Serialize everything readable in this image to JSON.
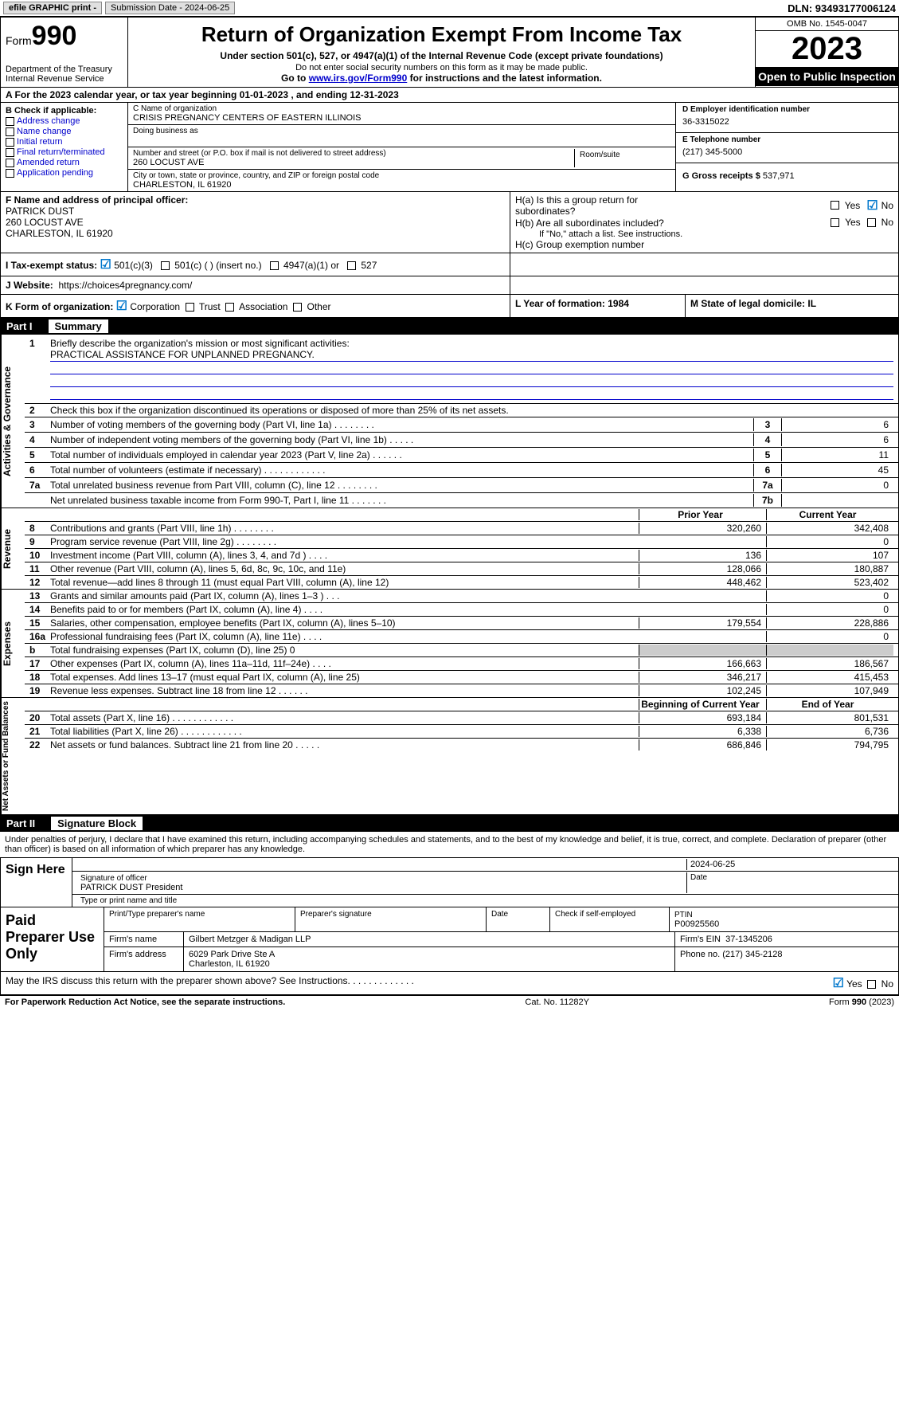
{
  "topbar": {
    "efile": "efile GRAPHIC print -",
    "submission": "Submission Date - 2024-06-25",
    "dln": "DLN: 93493177006124"
  },
  "header": {
    "form_prefix": "Form",
    "form_no": "990",
    "dept1": "Department of the Treasury",
    "dept2": "Internal Revenue Service",
    "title": "Return of Organization Exempt From Income Tax",
    "sub1": "Under section 501(c), 527, or 4947(a)(1) of the Internal Revenue Code (except private foundations)",
    "sub2": "Do not enter social security numbers on this form as it may be made public.",
    "sub3_pre": "Go to ",
    "sub3_link": "www.irs.gov/Form990",
    "sub3_post": " for instructions and the latest information.",
    "omb": "OMB No. 1545-0047",
    "year": "2023",
    "open": "Open to Public Inspection"
  },
  "row_a": "A For the 2023 calendar year, or tax year beginning 01-01-2023    , and ending 12-31-2023",
  "box_b": {
    "hdr": "B Check if applicable:",
    "items": [
      "Address change",
      "Name change",
      "Initial return",
      "Final return/terminated",
      "Amended return",
      "Application pending"
    ]
  },
  "box_c": {
    "name_lbl": "C Name of organization",
    "name": "CRISIS PREGNANCY CENTERS OF EASTERN ILLINOIS",
    "dba_lbl": "Doing business as",
    "dba": "",
    "addr_lbl": "Number and street (or P.O. box if mail is not delivered to street address)",
    "addr": "260 LOCUST AVE",
    "room_lbl": "Room/suite",
    "city_lbl": "City or town, state or province, country, and ZIP or foreign postal code",
    "city": "CHARLESTON, IL  61920"
  },
  "box_d": {
    "ein_lbl": "D Employer identification number",
    "ein": "36-3315022",
    "tel_lbl": "E Telephone number",
    "tel": "(217) 345-5000",
    "gross_lbl": "G Gross receipts $ ",
    "gross": "537,971"
  },
  "box_f": {
    "lbl": "F  Name and address of principal officer:",
    "name": "PATRICK DUST",
    "addr1": "260 LOCUST AVE",
    "addr2": "CHARLESTON, IL  61920"
  },
  "box_h": {
    "ha": "H(a)  Is this a group return for subordinates?",
    "hb": "H(b)  Are all subordinates included?",
    "hb_note": "If \"No,\" attach a list. See instructions.",
    "hc": "H(c)  Group exemption number",
    "yes": "Yes",
    "no": "No"
  },
  "row_i": {
    "lbl": "I    Tax-exempt status:",
    "opts": [
      "501(c)(3)",
      "501(c) (   ) (insert no.)",
      "4947(a)(1) or",
      "527"
    ]
  },
  "row_j": {
    "lbl": "J    Website:",
    "val": "https://choices4pregnancy.com/"
  },
  "row_k": {
    "lbl": "K Form of organization:",
    "opts": [
      "Corporation",
      "Trust",
      "Association",
      "Other"
    ],
    "l": "L Year of formation: 1984",
    "m": "M State of legal domicile: IL"
  },
  "part1": {
    "hdr_part": "Part I",
    "hdr_title": "Summary",
    "mission_lbl": "Briefly describe the organization's mission or most significant activities:",
    "mission": "PRACTICAL ASSISTANCE FOR UNPLANNED PREGNANCY.",
    "l2": "Check this box        if the organization discontinued its operations or disposed of more than 25% of its net assets.",
    "lines_gov": [
      {
        "n": "3",
        "t": "Number of voting members of the governing body (Part VI, line 1a)   .    .    .    .    .    .    .    .",
        "b": "3",
        "v": "6"
      },
      {
        "n": "4",
        "t": "Number of independent voting members of the governing body (Part VI, line 1b)   .    .    .    .    .",
        "b": "4",
        "v": "6"
      },
      {
        "n": "5",
        "t": "Total number of individuals employed in calendar year 2023 (Part V, line 2a)   .    .    .    .    .    .",
        "b": "5",
        "v": "11"
      },
      {
        "n": "6",
        "t": "Total number of volunteers (estimate if necessary)    .    .    .    .    .    .    .    .    .    .    .    .",
        "b": "6",
        "v": "45"
      },
      {
        "n": "7a",
        "t": "Total unrelated business revenue from Part VIII, column (C), line 12   .    .    .    .    .    .    .    .",
        "b": "7a",
        "v": "0"
      },
      {
        "n": "",
        "t": "Net unrelated business taxable income from Form 990-T, Part I, line 11   .    .    .    .    .    .    .",
        "b": "7b",
        "v": ""
      }
    ],
    "col_prior": "Prior Year",
    "col_current": "Current Year",
    "lines_rev": [
      {
        "n": "8",
        "t": "Contributions and grants (Part VIII, line 1h)   .    .    .    .    .    .    .    .",
        "p": "320,260",
        "c": "342,408"
      },
      {
        "n": "9",
        "t": "Program service revenue (Part VIII, line 2g)   .    .    .    .    .    .    .    .",
        "p": "",
        "c": "0"
      },
      {
        "n": "10",
        "t": "Investment income (Part VIII, column (A), lines 3, 4, and 7d )   .    .    .    .",
        "p": "136",
        "c": "107"
      },
      {
        "n": "11",
        "t": "Other revenue (Part VIII, column (A), lines 5, 6d, 8c, 9c, 10c, and 11e)",
        "p": "128,066",
        "c": "180,887"
      },
      {
        "n": "12",
        "t": "Total revenue—add lines 8 through 11 (must equal Part VIII, column (A), line 12)",
        "p": "448,462",
        "c": "523,402"
      }
    ],
    "lines_exp": [
      {
        "n": "13",
        "t": "Grants and similar amounts paid (Part IX, column (A), lines 1–3 )   .    .    .",
        "p": "",
        "c": "0"
      },
      {
        "n": "14",
        "t": "Benefits paid to or for members (Part IX, column (A), line 4)   .    .    .    .",
        "p": "",
        "c": "0"
      },
      {
        "n": "15",
        "t": "Salaries, other compensation, employee benefits (Part IX, column (A), lines 5–10)",
        "p": "179,554",
        "c": "228,886"
      },
      {
        "n": "16a",
        "t": "Professional fundraising fees (Part IX, column (A), line 11e)   .    .    .    .",
        "p": "",
        "c": "0"
      },
      {
        "n": "b",
        "t": "Total fundraising expenses (Part IX, column (D), line 25) 0",
        "p": "__SHADE__",
        "c": "__SHADE__"
      },
      {
        "n": "17",
        "t": "Other expenses (Part IX, column (A), lines 11a–11d, 11f–24e)   .    .    .    .",
        "p": "166,663",
        "c": "186,567"
      },
      {
        "n": "18",
        "t": "Total expenses. Add lines 13–17 (must equal Part IX, column (A), line 25)",
        "p": "346,217",
        "c": "415,453"
      },
      {
        "n": "19",
        "t": "Revenue less expenses. Subtract line 18 from line 12   .    .    .    .    .    .",
        "p": "102,245",
        "c": "107,949"
      }
    ],
    "col_begin": "Beginning of Current Year",
    "col_end": "End of Year",
    "lines_net": [
      {
        "n": "20",
        "t": "Total assets (Part X, line 16)   .    .    .    .    .    .    .    .    .    .    .    .",
        "p": "693,184",
        "c": "801,531"
      },
      {
        "n": "21",
        "t": "Total liabilities (Part X, line 26)   .    .    .    .    .    .    .    .    .    .    .    .",
        "p": "6,338",
        "c": "6,736"
      },
      {
        "n": "22",
        "t": "Net assets or fund balances. Subtract line 21 from line 20   .    .    .    .    .",
        "p": "686,846",
        "c": "794,795"
      }
    ],
    "vlabels": {
      "gov": "Activities & Governance",
      "rev": "Revenue",
      "exp": "Expenses",
      "net": "Net Assets or Fund Balances"
    }
  },
  "part2": {
    "hdr_part": "Part II",
    "hdr_title": "Signature Block",
    "decl": "Under penalties of perjury, I declare that I have examined this return, including accompanying schedules and statements, and to the best of my knowledge and belief, it is true, correct, and complete. Declaration of preparer (other than officer) is based on all information of which preparer has any knowledge.",
    "sign_here": "Sign Here",
    "sig_date": "2024-06-25",
    "sig_officer_lbl": "Signature of officer",
    "sig_officer": "PATRICK DUST President",
    "sig_date_lbl": "Date",
    "sig_name_lbl": "Type or print name and title",
    "paid": "Paid Preparer Use Only",
    "prep_name_lbl": "Print/Type preparer's name",
    "prep_sig_lbl": "Preparer's signature",
    "prep_date_lbl": "Date",
    "prep_self_lbl": "Check        if self-employed",
    "ptin_lbl": "PTIN",
    "ptin": "P00925560",
    "firm_name_lbl": "Firm's name",
    "firm_name": "Gilbert Metzger & Madigan LLP",
    "firm_ein_lbl": "Firm's EIN",
    "firm_ein": "37-1345206",
    "firm_addr_lbl": "Firm's address",
    "firm_addr1": "6029 Park Drive Ste A",
    "firm_addr2": "Charleston, IL  61920",
    "phone_lbl": "Phone no.",
    "phone": "(217) 345-2128",
    "discuss": "May the IRS discuss this return with the preparer shown above? See Instructions.    .    .    .    .    .    .    .    .    .    .    .    .",
    "yes": "Yes",
    "no": "No"
  },
  "footer": {
    "left": "For Paperwork Reduction Act Notice, see the separate instructions.",
    "mid": "Cat. No. 11282Y",
    "right": "Form 990 (2023)"
  }
}
